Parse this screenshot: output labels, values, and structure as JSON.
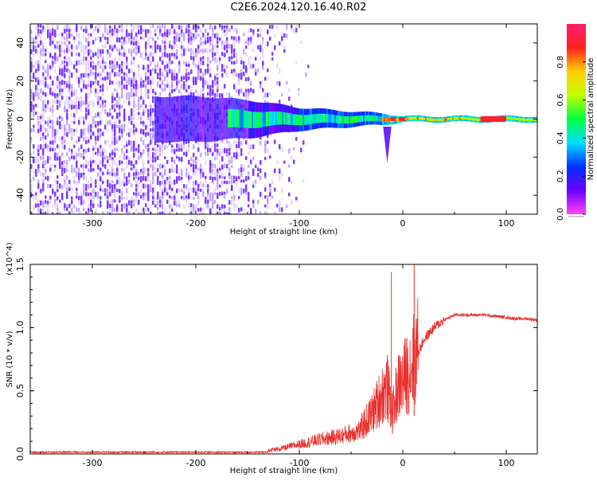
{
  "figure": {
    "title": "C2E6.2024.120.16.40.R02"
  },
  "colors": {
    "snr_line": "#e8302e",
    "spectrogram_low": "#6a00ff",
    "spectrogram_high": "#ff1e6e"
  },
  "chart_data": [
    {
      "type": "heatmap",
      "title": "",
      "xlabel": "Height of straight line (km)",
      "ylabel": "Frequency (Hz)",
      "xlim": [
        -360,
        130
      ],
      "ylim": [
        -50,
        50
      ],
      "xticks": [
        -300,
        -200,
        -100,
        0,
        100
      ],
      "yticks": [
        -40,
        -20,
        0,
        20,
        40
      ],
      "colorbar": {
        "label": "Normalized spectral amplitude",
        "range": [
          0.0,
          1.0
        ],
        "ticks": [
          "0.0",
          "0.2",
          "0.4",
          "0.6",
          "0.8"
        ],
        "colormap": [
          "#ff44ff",
          "#6a00ff",
          "#0030ff",
          "#00e0ff",
          "#00ff40",
          "#c0ff00",
          "#ffd000",
          "#ff2020",
          "#ff1e6e"
        ]
      },
      "features": {
        "noise_extent_km": [
          -360,
          -130
        ],
        "frequency_band_hz_by_height": [
          {
            "x": -200,
            "halfwidth": 12
          },
          {
            "x": -150,
            "halfwidth": 10
          },
          {
            "x": -100,
            "halfwidth": 6
          },
          {
            "x": -50,
            "halfwidth": 4
          },
          {
            "x": -20,
            "halfwidth": 3
          },
          {
            "x": 0,
            "halfwidth": 1.5
          },
          {
            "x": 130,
            "halfwidth": 1.5
          }
        ],
        "tail_near_km": -15,
        "tail_min_freq_hz": -23,
        "peak_amplitude_region_km": [
          75,
          100
        ]
      }
    },
    {
      "type": "line",
      "title": "",
      "xlabel": "Height of straight line (km)",
      "ylabel": "SNR (10 * v/v)",
      "y_scale_label": "(x10^4)",
      "xlim": [
        -360,
        130
      ],
      "ylim": [
        0.0,
        1.5
      ],
      "xticks": [
        -300,
        -200,
        -100,
        0,
        100
      ],
      "yticks": [
        "0.0",
        "0.5",
        "1.0",
        "1.5"
      ],
      "series": [
        {
          "x": [
            -360,
            -300,
            -250,
            -200,
            -150,
            -120,
            -100,
            -80,
            -60,
            -40,
            -30,
            -20,
            -15,
            -10,
            -5,
            0,
            5,
            10,
            15,
            20,
            30,
            40,
            50,
            60,
            70,
            80,
            90,
            100,
            110,
            120,
            130
          ],
          "y": [
            0.01,
            0.01,
            0.01,
            0.02,
            0.02,
            0.04,
            0.08,
            0.12,
            0.15,
            0.2,
            0.3,
            0.45,
            0.5,
            0.3,
            0.5,
            0.55,
            0.62,
            0.7,
            0.8,
            0.9,
            1.0,
            1.06,
            1.1,
            1.1,
            1.1,
            1.1,
            1.09,
            1.08,
            1.07,
            1.07,
            1.06
          ],
          "spikes": [
            {
              "x": -11,
              "y": 1.44
            },
            {
              "x": 11,
              "y": 1.52
            }
          ]
        }
      ]
    }
  ]
}
